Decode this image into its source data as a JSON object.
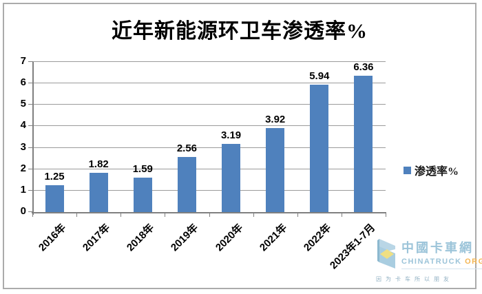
{
  "chart_data": {
    "type": "bar",
    "title": "近年新能源环卫车渗透率%",
    "categories": [
      "2016年",
      "2017年",
      "2018年",
      "2019年",
      "2020年",
      "2021年",
      "2022年",
      "2023年1-7月"
    ],
    "values": [
      1.25,
      1.82,
      1.59,
      2.56,
      3.19,
      3.92,
      5.94,
      6.36
    ],
    "series_name": "渗透率%",
    "xlabel": "",
    "ylabel": "",
    "ylim": [
      0,
      7
    ],
    "ytick_step": 1,
    "yticks": [
      "0",
      "1",
      "2",
      "3",
      "4",
      "5",
      "6",
      "7"
    ],
    "grid": true,
    "legend_position": "right-middle",
    "bar_color": "#4f81bd",
    "value_label_decimals": 2
  },
  "legend": {
    "label": "渗透率%",
    "swatch_color": "#4f81bd"
  },
  "watermark": {
    "brand": "中國卡車網",
    "domain": "CHINATRUCK",
    "domain_suffix": "ORG",
    "slogan": "因为卡车所以朋友",
    "brand_color": "#9cc4d9",
    "domain_color": "#9cc4d9",
    "suffix_color": "#f4b653",
    "slogan_color": "#8fafc2",
    "icon_blue": "#a9cde0",
    "icon_yellow": "#efdf83"
  }
}
